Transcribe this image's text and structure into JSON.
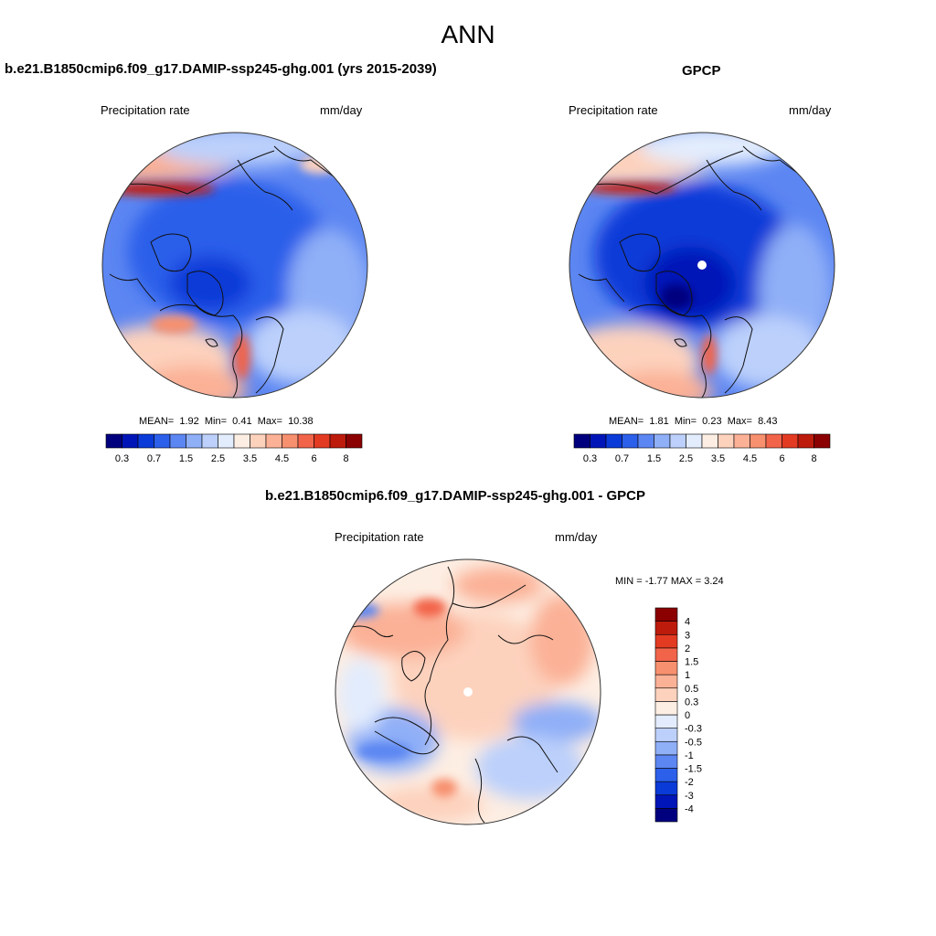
{
  "figure": {
    "season": "ANN"
  },
  "panels": [
    {
      "title": "b.e21.B1850cmip6.f09_g17.DAMIP-ssp245-ghg.001 (yrs 2015-2039)",
      "left_label": "Precipitation rate",
      "right_label": "mm/day",
      "stats": {
        "mean_label": "MEAN=",
        "mean": "1.92",
        "min_label": "Min=",
        "min": "0.41",
        "max_label": "Max=",
        "max": "10.38"
      }
    },
    {
      "title": "GPCP",
      "left_label": "Precipitation rate",
      "right_label": "mm/day",
      "stats": {
        "mean_label": "MEAN=",
        "mean": "1.81",
        "min_label": "Min=",
        "min": "0.23",
        "max_label": "Max=",
        "max": "8.43"
      }
    },
    {
      "title": "b.e21.B1850cmip6.f09_g17.DAMIP-ssp245-ghg.001 - GPCP",
      "left_label": "Precipitation rate",
      "right_label": "mm/day",
      "stats_text": "MIN =  -1.77 MAX =   3.24"
    }
  ],
  "colorbars": {
    "absolute": {
      "colors": [
        "#00007f",
        "#0015b7",
        "#0a3ad8",
        "#2c5fea",
        "#5c86f2",
        "#8faff7",
        "#bcd0fb",
        "#e2ecfd",
        "#fdeee3",
        "#fdd2bd",
        "#fbb196",
        "#f7906e",
        "#f2644a",
        "#e33a22",
        "#bd1b0c",
        "#8b0000"
      ],
      "labels": [
        "0.3",
        "0.7",
        "1.5",
        "2.5",
        "3.5",
        "4.5",
        "6",
        "8"
      ]
    },
    "difference": {
      "colors": [
        "#00007f",
        "#0015b7",
        "#0a3ad8",
        "#2c5fea",
        "#5c86f2",
        "#8faff7",
        "#bcd0fb",
        "#e2ecfd",
        "#fdeee3",
        "#fdd2bd",
        "#fbb196",
        "#f7906e",
        "#f2644a",
        "#e33a22",
        "#bd1b0c",
        "#8b0000"
      ],
      "labels": [
        "-4",
        "-3",
        "-2",
        "-1.5",
        "-1",
        "-0.5",
        "-0.3",
        "0",
        "0.3",
        "0.5",
        "1",
        "1.5",
        "2",
        "3",
        "4"
      ]
    }
  }
}
